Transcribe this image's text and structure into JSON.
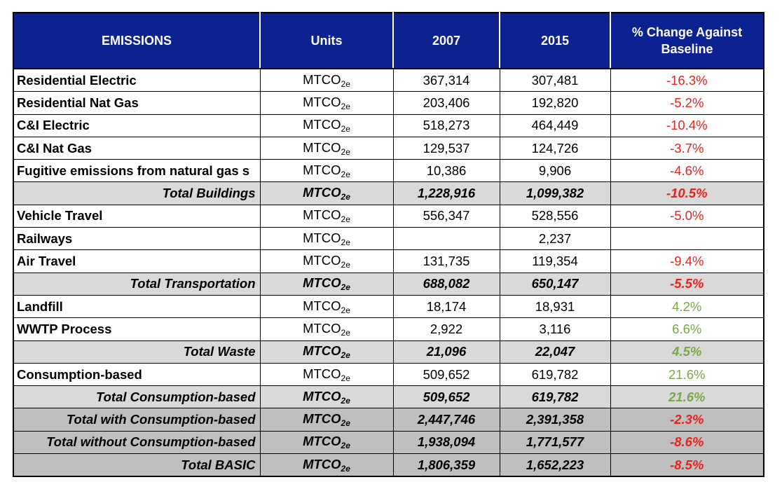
{
  "table": {
    "header": [
      "EMISSIONS",
      "Units",
      "2007",
      "2015",
      "% Change Against Baseline"
    ],
    "header_color": "#0c2290",
    "rows": [
      {
        "label": "Residential Electric",
        "unit": "MTCO",
        "unit_sub": "2e",
        "v2007": "367,314",
        "v2015": "307,481",
        "change": "-16.3%",
        "change_color": "#e8231b",
        "style": "normal"
      },
      {
        "label": "Residential Nat Gas",
        "unit": "MTCO",
        "unit_sub": "2e",
        "v2007": "203,406",
        "v2015": "192,820",
        "change": "-5.2%",
        "change_color": "#e8231b",
        "style": "normal"
      },
      {
        "label": "C&I Electric",
        "unit": "MTCO",
        "unit_sub": "2e",
        "v2007": "518,273",
        "v2015": "464,449",
        "change": "-10.4%",
        "change_color": "#e8231b",
        "style": "normal"
      },
      {
        "label": "C&I Nat Gas",
        "unit": "MTCO",
        "unit_sub": "2e",
        "v2007": "129,537",
        "v2015": "124,726",
        "change": "-3.7%",
        "change_color": "#e8231b",
        "style": "normal"
      },
      {
        "label": "Fugitive emissions from natural gas s",
        "unit": "MTCO",
        "unit_sub": "2e",
        "v2007": "10,386",
        "v2015": "9,906",
        "change": "-4.6%",
        "change_color": "#e8231b",
        "style": "normal"
      },
      {
        "label": "Total Buildings",
        "unit": "MTCO",
        "unit_sub": "2e",
        "v2007": "1,228,916",
        "v2015": "1,099,382",
        "change": "-10.5%",
        "change_color": "#e8231b",
        "style": "total"
      },
      {
        "label": "Vehicle Travel",
        "unit": "MTCO",
        "unit_sub": "2e",
        "v2007": "556,347",
        "v2015": "528,556",
        "change": "-5.0%",
        "change_color": "#e8231b",
        "style": "normal"
      },
      {
        "label": "Railways",
        "unit": "MTCO",
        "unit_sub": "2e",
        "v2007": null,
        "v2015": "2,237",
        "change": null,
        "change_color": "#e8231b",
        "style": "normal"
      },
      {
        "label": "Air Travel",
        "unit": "MTCO",
        "unit_sub": "2e",
        "v2007": "131,735",
        "v2015": "119,354",
        "change": "-9.4%",
        "change_color": "#e8231b",
        "style": "normal"
      },
      {
        "label": "Total Transportation",
        "unit": "MTCO",
        "unit_sub": "2e",
        "v2007": "688,082",
        "v2015": "650,147",
        "change": "-5.5%",
        "change_color": "#e8231b",
        "style": "total"
      },
      {
        "label": "Landfill",
        "unit": "MTCO",
        "unit_sub": "2e",
        "v2007": "18,174",
        "v2015": "18,931",
        "change": "4.2%",
        "change_color": "#78a843",
        "style": "normal"
      },
      {
        "label": "WWTP Process",
        "unit": "MTCO",
        "unit_sub": "2e",
        "v2007": "2,922",
        "v2015": "3,116",
        "change": "6.6%",
        "change_color": "#78a843",
        "style": "normal"
      },
      {
        "label": "Total Waste",
        "unit": "MTCO",
        "unit_sub": "2e",
        "v2007": "21,096",
        "v2015": "22,047",
        "change": "4.5%",
        "change_color": "#78a843",
        "style": "total"
      },
      {
        "label": "Consumption-based",
        "unit": "MTCO",
        "unit_sub": "2e",
        "v2007": "509,652",
        "v2015": "619,782",
        "change": "21.6%",
        "change_color": "#78a843",
        "style": "normal"
      },
      {
        "label": "Total Consumption-based",
        "unit": "MTCO",
        "unit_sub": "2e",
        "v2007": "509,652",
        "v2015": "619,782",
        "change": "21.6%",
        "change_color": "#78a843",
        "style": "total"
      },
      {
        "label": "Total with Consumption-based",
        "unit": "MTCO",
        "unit_sub": "2e",
        "v2007": "2,447,746",
        "v2015": "2,391,358",
        "change": "-2.3%",
        "change_color": "#e8231b",
        "style": "grand"
      },
      {
        "label": "Total without Consumption-based",
        "unit": "MTCO",
        "unit_sub": "2e",
        "v2007": "1,938,094",
        "v2015": "1,771,577",
        "change": "-8.6%",
        "change_color": "#e8231b",
        "style": "grand"
      },
      {
        "label": "Total BASIC",
        "unit": "MTCO",
        "unit_sub": "2e",
        "v2007": "1,806,359",
        "v2015": "1,652,223",
        "change": "-8.5%",
        "change_color": "#e8231b",
        "style": "grand"
      }
    ]
  }
}
